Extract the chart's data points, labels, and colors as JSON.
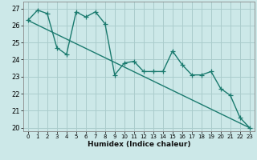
{
  "title": "",
  "xlabel": "Humidex (Indice chaleur)",
  "ylabel": "",
  "bg_color": "#cce8e8",
  "line_color": "#1a7a6e",
  "grid_color": "#aacccc",
  "xlim": [
    -0.5,
    23.5
  ],
  "ylim": [
    19.8,
    27.4
  ],
  "yticks": [
    20,
    21,
    22,
    23,
    24,
    25,
    26,
    27
  ],
  "xticks": [
    0,
    1,
    2,
    3,
    4,
    5,
    6,
    7,
    8,
    9,
    10,
    11,
    12,
    13,
    14,
    15,
    16,
    17,
    18,
    19,
    20,
    21,
    22,
    23
  ],
  "line1_x": [
    0,
    1,
    2,
    3,
    4,
    5,
    6,
    7,
    8,
    9,
    10,
    11,
    12,
    13,
    14,
    15,
    16,
    17,
    18,
    19,
    20,
    21,
    22,
    23
  ],
  "line1_y": [
    26.3,
    26.9,
    26.7,
    24.7,
    24.3,
    26.8,
    26.5,
    26.8,
    26.1,
    23.1,
    23.8,
    23.9,
    23.3,
    23.3,
    23.3,
    24.5,
    23.7,
    23.1,
    23.1,
    23.3,
    22.3,
    21.9,
    20.6,
    20.0
  ],
  "line2_x": [
    0,
    23
  ],
  "line2_y": [
    26.3,
    20.0
  ],
  "marker": "+",
  "markersize": 4,
  "linewidth": 1.0
}
